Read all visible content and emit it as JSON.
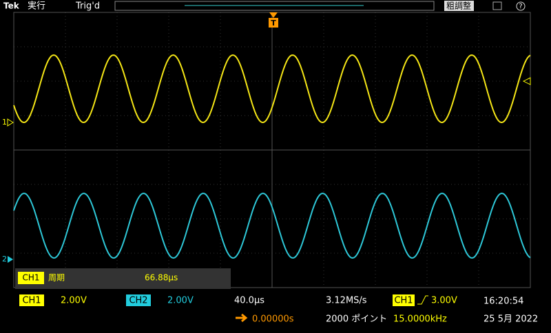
{
  "top_bar": {
    "brand": "Tek",
    "run_state": "実行",
    "trigger_state": "Trig'd",
    "fine_button": "粗調整"
  },
  "screen": {
    "ch1_marker": "1",
    "ch2_marker": "2",
    "trigger_marker": "T"
  },
  "measurement": {
    "source": "CH1",
    "name": "周期",
    "value": "66.88µs"
  },
  "status": {
    "ch1_label": "CH1",
    "ch1_scale": "2.00V",
    "ch2_label": "CH2",
    "ch2_scale": "2.00V",
    "timebase": "40.0µs",
    "sample_rate": "3.12MS/s",
    "trigger_source": "CH1",
    "trigger_level": "3.00V",
    "time": "16:20:54",
    "position": "0.00000s",
    "record_length": "2000 ポイント",
    "frequency": "15.0000kHz",
    "date": "25 5月 2022"
  }
}
